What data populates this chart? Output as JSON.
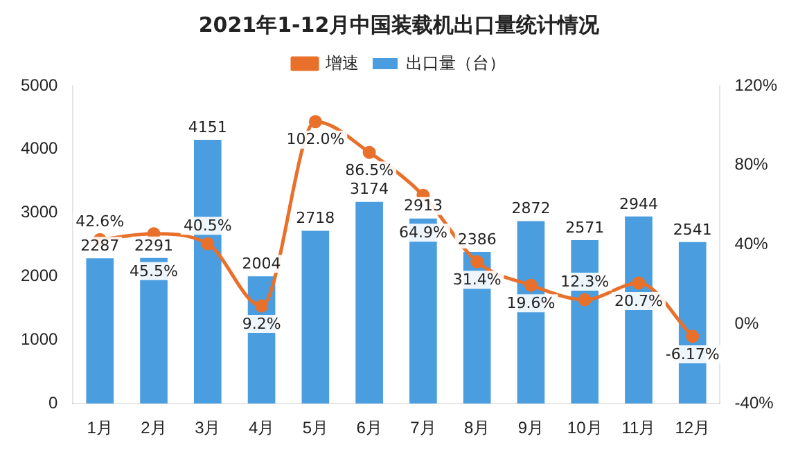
{
  "chart_data": {
    "type": "bar",
    "title": "2021年1-12月中国装载机出口量统计情况",
    "categories": [
      "1月",
      "2月",
      "3月",
      "4月",
      "5月",
      "6月",
      "7月",
      "8月",
      "9月",
      "10月",
      "11月",
      "12月"
    ],
    "series": [
      {
        "name": "出口量（台）",
        "color": "#4a9ee0",
        "values": [
          2287,
          2291,
          4151,
          2004,
          2718,
          3174,
          2913,
          2386,
          2872,
          2571,
          2944,
          2541
        ],
        "value_labels": [
          "2287",
          "2291",
          "4151",
          "2004",
          "2718",
          "3174",
          "2913",
          "2386",
          "2872",
          "2571",
          "2944",
          "2541"
        ]
      },
      {
        "name": "增速",
        "type": "line",
        "axis": "y2",
        "color": "#e8702a",
        "marker": "circle",
        "values": [
          42.6,
          45.5,
          40.5,
          9.2,
          102.0,
          86.5,
          64.9,
          31.4,
          19.6,
          12.3,
          20.7,
          -6.17
        ],
        "value_labels": [
          "42.6%",
          "45.5%",
          "40.5%",
          "9.2%",
          "102.0%",
          "86.5%",
          "64.9%",
          "31.4%",
          "19.6%",
          "12.3%",
          "20.7%",
          "-6.17%"
        ]
      }
    ],
    "ylim": [
      0,
      5000
    ],
    "yticks": [
      0,
      1000,
      2000,
      3000,
      4000,
      5000
    ],
    "y2lim": [
      -40,
      120
    ],
    "y2ticks": [
      {
        "value": -40,
        "label": "-40%"
      },
      {
        "value": 0,
        "label": "0%"
      },
      {
        "value": 40,
        "label": "40%"
      },
      {
        "value": 80,
        "label": "80%"
      },
      {
        "value": 120,
        "label": "120%"
      }
    ],
    "legend": "top",
    "grid": false
  }
}
